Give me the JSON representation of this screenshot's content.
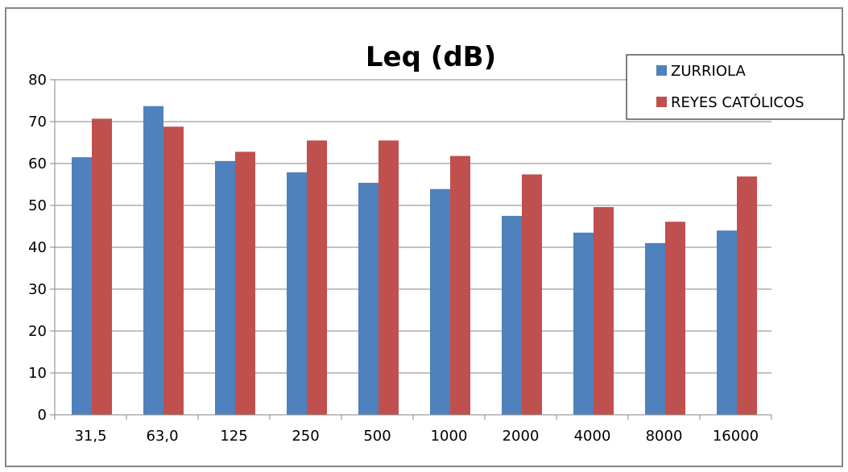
{
  "chart_data": {
    "type": "bar",
    "title": "Leq (dB)",
    "categories": [
      "31,5",
      "63,0",
      "125",
      "250",
      "500",
      "1000",
      "2000",
      "4000",
      "8000",
      "16000"
    ],
    "series": [
      {
        "name": "ZURRIOLA",
        "color": "#4F81BD",
        "values": [
          61.5,
          73.7,
          60.6,
          57.9,
          55.4,
          53.9,
          47.5,
          43.5,
          41.0,
          44.0
        ]
      },
      {
        "name": "REYES CATÓLICOS",
        "color": "#C0504D",
        "values": [
          70.7,
          68.8,
          62.8,
          65.5,
          65.5,
          61.8,
          57.4,
          49.6,
          46.1,
          56.9
        ]
      }
    ],
    "ylim": [
      0,
      80
    ],
    "yticks": [
      0,
      10,
      20,
      30,
      40,
      50,
      60,
      70,
      80
    ],
    "grid": true,
    "legend_position": "top-right"
  }
}
